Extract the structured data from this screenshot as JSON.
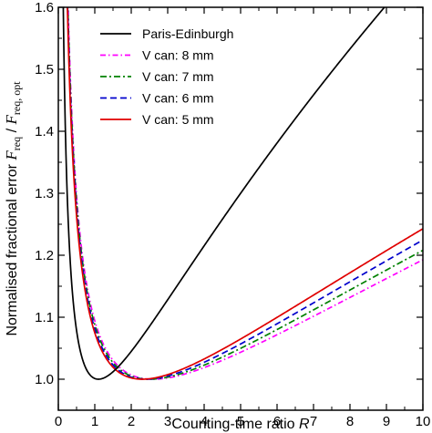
{
  "chart_data": {
    "type": "line",
    "xlabel": {
      "text": "Counting-time ratio ",
      "var": "R"
    },
    "ylabel": {
      "prefix": "Normalised fractional error ",
      "num": "F",
      "num_sub": "req",
      "den": "F",
      "den_sub": "req, opt"
    },
    "xlim": [
      0,
      10
    ],
    "ylim": [
      0.95,
      1.6
    ],
    "xticks": [
      0,
      1,
      2,
      3,
      4,
      5,
      6,
      7,
      8,
      9,
      10
    ],
    "yticks": [
      1.0,
      1.1,
      1.2,
      1.3,
      1.4,
      1.5,
      1.6
    ],
    "ytick_labels": [
      "1.0",
      "1.1",
      "1.2",
      "1.3",
      "1.4",
      "1.5",
      "1.6"
    ],
    "grid": false,
    "legend_position": "top-center",
    "series": [
      {
        "name": "Paris-Edinburgh",
        "color": "#000000",
        "dash": "solid",
        "B": 1.1,
        "x": [
          0.08,
          0.1,
          0.15,
          0.2,
          0.3,
          0.5,
          0.7,
          1.0,
          1.1,
          1.5,
          2,
          3,
          4,
          5,
          6,
          7,
          8,
          9,
          9.6
        ],
        "y": [
          1.6,
          1.53,
          1.37,
          1.27,
          1.15,
          1.056,
          1.017,
          1.0009,
          1.0,
          1.009,
          1.04,
          1.118,
          1.196,
          1.272,
          1.345,
          1.415,
          1.483,
          1.55,
          1.6
        ]
      },
      {
        "name": "V can: 8 mm",
        "color": "#ff00ff",
        "dash": "6,3,1.5,3",
        "B": 2.6,
        "x": [
          0.25,
          0.3,
          0.5,
          0.7,
          1,
          1.5,
          2,
          2.6,
          3,
          4,
          5,
          6,
          7,
          8,
          9,
          10
        ],
        "y": [
          1.6,
          1.5,
          1.25,
          1.155,
          1.087,
          1.033,
          1.008,
          1.0,
          1.0013,
          1.013,
          1.031,
          1.053,
          1.076,
          1.1,
          1.124,
          1.148
        ]
      },
      {
        "name": "V can: 7 mm",
        "color": "#008000",
        "dash": "7,3,2,3",
        "B": 2.5,
        "x": [
          0.24,
          0.3,
          0.5,
          0.7,
          1,
          1.5,
          2,
          2.5,
          3,
          4,
          5,
          6,
          7,
          8,
          9,
          10
        ],
        "y": [
          1.6,
          1.49,
          1.24,
          1.15,
          1.081,
          1.03,
          1.007,
          1.0,
          1.002,
          1.016,
          1.036,
          1.059,
          1.083,
          1.108,
          1.133,
          1.168
        ]
      },
      {
        "name": "V can: 6 mm",
        "color": "#0000cc",
        "dash": "7,4",
        "B": 2.4,
        "x": [
          0.23,
          0.3,
          0.5,
          0.7,
          1,
          1.5,
          2,
          2.4,
          3,
          4,
          5,
          6,
          7,
          8,
          9,
          10
        ],
        "y": [
          1.6,
          1.47,
          1.23,
          1.14,
          1.075,
          1.026,
          1.006,
          1.0,
          1.004,
          1.022,
          1.045,
          1.071,
          1.098,
          1.126,
          1.155,
          1.196
        ]
      },
      {
        "name": "V can: 5 mm",
        "color": "#e00000",
        "dash": "solid",
        "B": 2.3,
        "x": [
          0.22,
          0.3,
          0.5,
          0.7,
          1,
          1.5,
          2,
          2.3,
          3,
          4,
          5,
          6,
          7,
          8,
          9,
          10
        ],
        "y": [
          1.6,
          1.46,
          1.22,
          1.13,
          1.069,
          1.022,
          1.004,
          1.0,
          1.006,
          1.03,
          1.058,
          1.088,
          1.12,
          1.152,
          1.186,
          1.227
        ]
      }
    ]
  }
}
